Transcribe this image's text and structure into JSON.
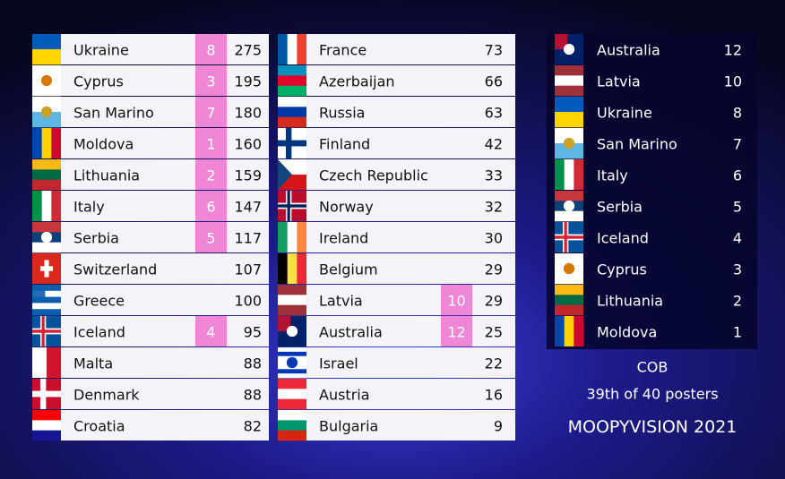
{
  "scoreboard": {
    "left": [
      {
        "country": "Ukraine",
        "points": 8,
        "total": 275
      },
      {
        "country": "Cyprus",
        "points": 3,
        "total": 195
      },
      {
        "country": "San Marino",
        "points": 7,
        "total": 180
      },
      {
        "country": "Moldova",
        "points": 1,
        "total": 160
      },
      {
        "country": "Lithuania",
        "points": 2,
        "total": 159
      },
      {
        "country": "Italy",
        "points": 6,
        "total": 147
      },
      {
        "country": "Serbia",
        "points": 5,
        "total": 117
      },
      {
        "country": "Switzerland",
        "points": null,
        "total": 107
      },
      {
        "country": "Greece",
        "points": null,
        "total": 100
      },
      {
        "country": "Iceland",
        "points": 4,
        "total": 95
      },
      {
        "country": "Malta",
        "points": null,
        "total": 88
      },
      {
        "country": "Denmark",
        "points": null,
        "total": 88
      },
      {
        "country": "Croatia",
        "points": null,
        "total": 82
      }
    ],
    "middle": [
      {
        "country": "France",
        "points": null,
        "total": 73
      },
      {
        "country": "Azerbaijan",
        "points": null,
        "total": 66
      },
      {
        "country": "Russia",
        "points": null,
        "total": 63
      },
      {
        "country": "Finland",
        "points": null,
        "total": 42
      },
      {
        "country": "Czech Republic",
        "points": null,
        "total": 33
      },
      {
        "country": "Norway",
        "points": null,
        "total": 32
      },
      {
        "country": "Ireland",
        "points": null,
        "total": 30
      },
      {
        "country": "Belgium",
        "points": null,
        "total": 29
      },
      {
        "country": "Latvia",
        "points": 10,
        "total": 29
      },
      {
        "country": "Australia",
        "points": 12,
        "total": 25
      },
      {
        "country": "Israel",
        "points": null,
        "total": 22
      },
      {
        "country": "Austria",
        "points": null,
        "total": 16
      },
      {
        "country": "Bulgaria",
        "points": null,
        "total": 9
      }
    ]
  },
  "received": [
    {
      "country": "Australia",
      "points": 12
    },
    {
      "country": "Latvia",
      "points": 10
    },
    {
      "country": "Ukraine",
      "points": 8
    },
    {
      "country": "San Marino",
      "points": 7
    },
    {
      "country": "Italy",
      "points": 6
    },
    {
      "country": "Serbia",
      "points": 5
    },
    {
      "country": "Iceland",
      "points": 4
    },
    {
      "country": "Cyprus",
      "points": 3
    },
    {
      "country": "Lithuania",
      "points": 2
    },
    {
      "country": "Moldova",
      "points": 1
    }
  ],
  "footer": {
    "code": "COB",
    "rank": "39th of 40 posters",
    "title": "MOOPYVISION 2021"
  }
}
